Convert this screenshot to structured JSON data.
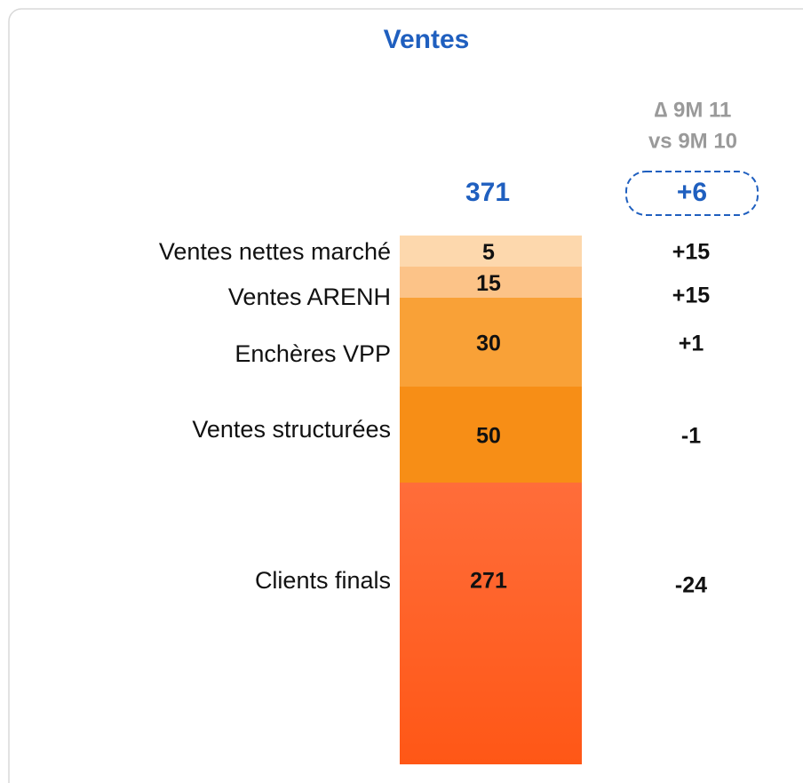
{
  "chart_data": {
    "type": "stacked_bar",
    "title": "Ventes",
    "delta_header": [
      "∆ 9M 11",
      "vs 9M 10"
    ],
    "total": 371,
    "total_delta": "+6",
    "categories": [
      "Ventes nettes marché",
      "Ventes ARENH",
      "Enchères VPP",
      "Ventes structurées",
      "Clients finals"
    ],
    "values": [
      5,
      15,
      30,
      50,
      271
    ],
    "deltas": [
      "+15",
      "+15",
      "+1",
      "-1",
      "-24"
    ],
    "colors": [
      "#fdd8ad",
      "#fcc388",
      "#f9a137",
      "#f78e16",
      "#ff6634"
    ]
  }
}
